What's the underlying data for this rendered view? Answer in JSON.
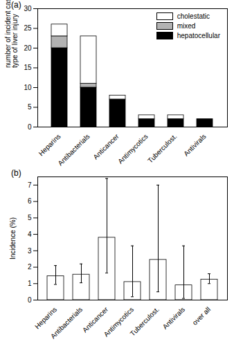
{
  "chart_data": [
    {
      "type": "bar",
      "title": "(a)",
      "y_label": "number of incident cases according to type of liver injury",
      "categories": [
        "Heparins",
        "Antibacterials",
        "Anticancer",
        "Antimycotics",
        "Tuberculost.",
        "Antivirals"
      ],
      "series": [
        {
          "name": "hepatocellular",
          "color": "#000000",
          "values": [
            20,
            10,
            7,
            2,
            2,
            2
          ]
        },
        {
          "name": "mixed",
          "color": "#b3b3b3",
          "values": [
            3,
            1,
            0,
            0,
            0,
            0
          ]
        },
        {
          "name": "cholestatic",
          "color": "#ffffff",
          "values": [
            3,
            12,
            1,
            1,
            1,
            0
          ]
        }
      ],
      "stacked": true,
      "legend": "top-right",
      "ylim": [
        0,
        30
      ],
      "yticks": [
        0,
        5,
        10,
        15,
        20,
        25,
        30
      ]
    },
    {
      "type": "bar",
      "title": "(b)",
      "y_label": "Incidence (%)",
      "categories": [
        "Heparins",
        "Antibacterials",
        "Anticancer",
        "Antimycotics",
        "Tuberculost.",
        "Antivirals",
        "over all"
      ],
      "values": [
        1.45,
        1.55,
        3.8,
        1.1,
        2.45,
        0.9,
        1.25
      ],
      "lower": [
        0.95,
        1.05,
        1.65,
        0.2,
        0.5,
        0.1,
        1.0
      ],
      "upper": [
        2.1,
        2.2,
        7.4,
        3.3,
        7.0,
        3.3,
        1.6
      ],
      "color": "#ffffff",
      "ylim": [
        0,
        7.5
      ],
      "yticks": [
        0,
        1,
        2,
        3,
        4,
        5,
        6,
        7
      ]
    }
  ]
}
